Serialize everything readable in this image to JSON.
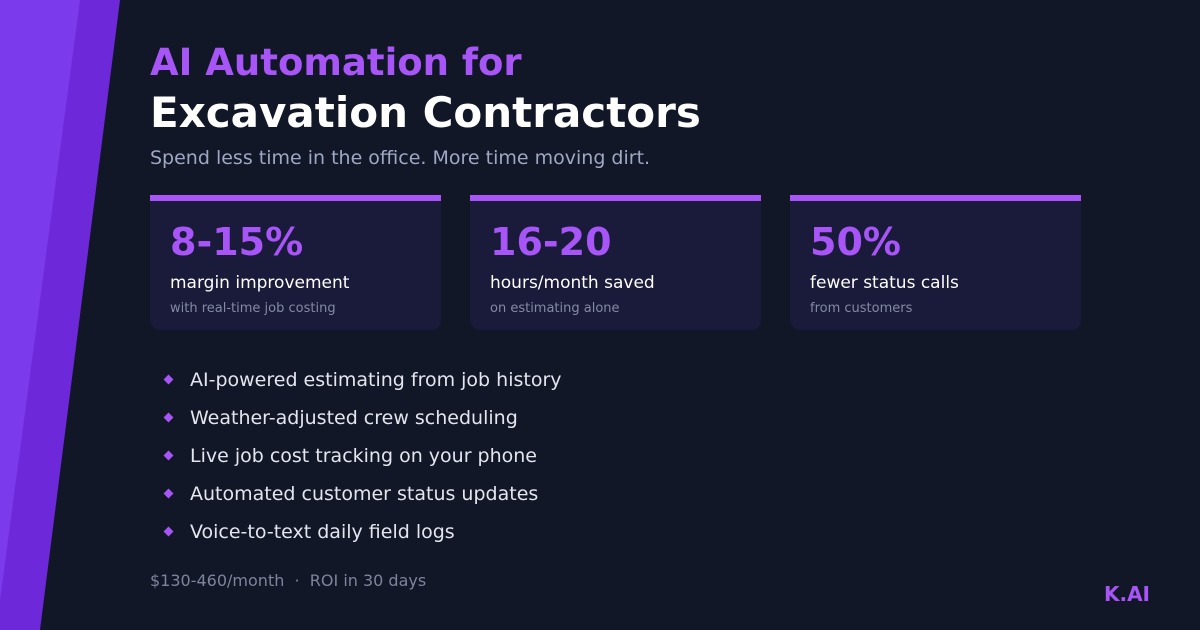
{
  "headline": {
    "line1": "AI Automation for",
    "line2": "Excavation Contractors",
    "subtitle": "Spend less time in the office. More time moving dirt."
  },
  "stats": [
    {
      "value": "8-15%",
      "label": "margin improvement",
      "detail": "with real-time job costing"
    },
    {
      "value": "16-20",
      "label": "hours/month saved",
      "detail": "on estimating alone"
    },
    {
      "value": "50%",
      "label": "fewer status calls",
      "detail": "from customers"
    }
  ],
  "features": [
    "AI-powered estimating from job history",
    "Weather-adjusted crew scheduling",
    "Live job cost tracking on your phone",
    "Automated customer status updates",
    "Voice-to-text daily field logs"
  ],
  "footer": {
    "price": "$130-460/month",
    "separator": "·",
    "roi": "ROI in 30 days"
  },
  "brand": {
    "logo": "K.AI",
    "accent_color": "#a855f7",
    "background_color": "#111727",
    "stripe_colors": [
      "#7c3aed",
      "#6d28d9"
    ]
  }
}
